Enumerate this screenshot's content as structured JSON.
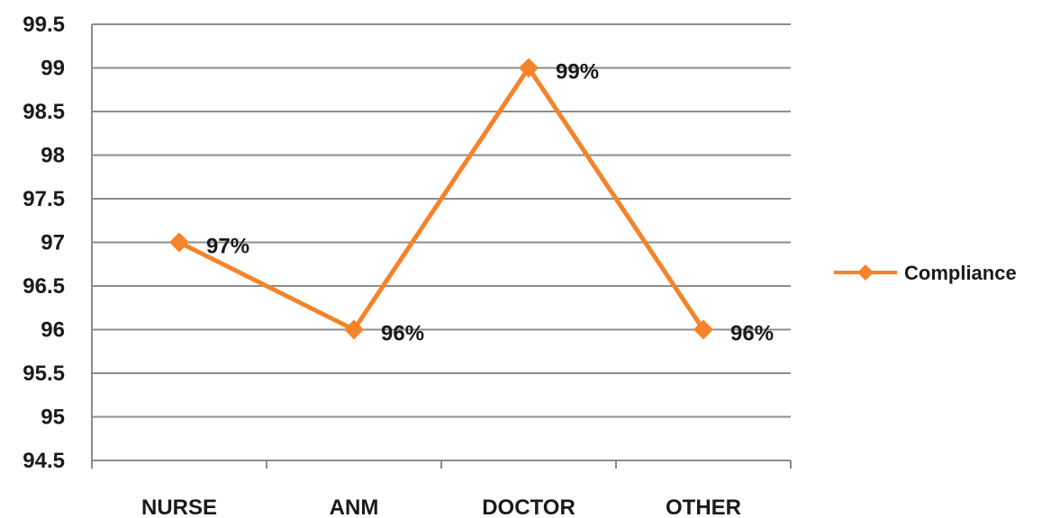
{
  "chart_data": {
    "type": "line",
    "categories": [
      "NURSE",
      "ANM",
      "DOCTOR",
      "OTHER"
    ],
    "series": [
      {
        "name": "Compliance",
        "values": [
          97,
          96,
          99,
          96
        ],
        "labels": [
          "97%",
          "96%",
          "99%",
          "96%"
        ],
        "color": "#f5832a"
      }
    ],
    "y_ticks": [
      "94.5",
      "95",
      "95.5",
      "96",
      "96.5",
      "97",
      "97.5",
      "98",
      "98.5",
      "99",
      "99.5"
    ],
    "ylim": [
      94.5,
      99.5
    ],
    "grid": true,
    "legend_position": "right",
    "marker": "diamond",
    "gridline_color": "#8c8c8c",
    "axis_color": "#8c8c8c"
  }
}
